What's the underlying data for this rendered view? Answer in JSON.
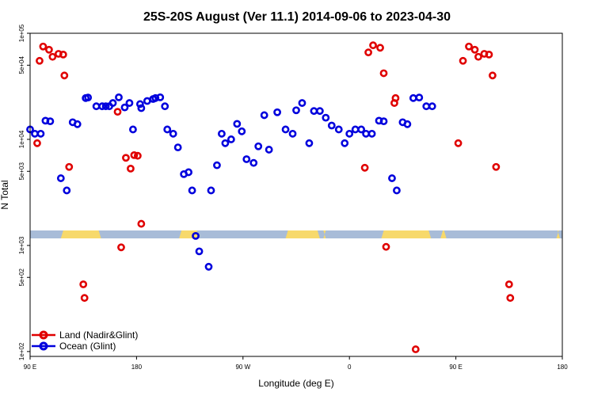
{
  "chart_data": {
    "type": "scatter",
    "title": "25S-20S August (Ver 11.1)   2014-09-06 to 2023-04-30",
    "xlabel": "Longitude (deg E)",
    "ylabel": "N Total",
    "x_ticks": [
      {
        "value": 90,
        "label": "90 E"
      },
      {
        "value": 180,
        "label": "180"
      },
      {
        "value": 270,
        "label": "90 W"
      },
      {
        "value": 360,
        "label": "0"
      },
      {
        "value": 450,
        "label": "90 E"
      },
      {
        "value": 540,
        "label": "180"
      }
    ],
    "y_scale": "log",
    "y_ticks": [
      {
        "value": 100,
        "label": "1e+02"
      },
      {
        "value": 500,
        "label": "5e+02"
      },
      {
        "value": 1000,
        "label": "1e+03"
      },
      {
        "value": 5000,
        "label": "5e+03"
      },
      {
        "value": 10000,
        "label": "1e+04"
      },
      {
        "value": 50000,
        "label": "5e+04"
      },
      {
        "value": 100000,
        "label": "1e+05"
      }
    ],
    "xlim": [
      90,
      540
    ],
    "ylim": [
      90,
      100000
    ],
    "legend_position": "bottom-left",
    "land_strip_spans": [
      [
        116,
        150
      ],
      [
        216,
        233
      ],
      [
        306,
        316
      ],
      [
        307,
        335
      ],
      [
        338,
        340
      ],
      [
        387,
        429
      ],
      [
        437,
        442
      ],
      [
        535,
        538
      ]
    ],
    "series": [
      {
        "name": "Land (Nadir&Glint)",
        "color": "#e00000",
        "points": [
          [
            96,
            9200
          ],
          [
            98,
            55000
          ],
          [
            101,
            75000
          ],
          [
            106,
            70000
          ],
          [
            109,
            60000
          ],
          [
            114,
            64000
          ],
          [
            118,
            63000
          ],
          [
            119,
            40000
          ],
          [
            123,
            5500
          ],
          [
            135,
            430
          ],
          [
            136,
            320
          ],
          [
            164,
            18200
          ],
          [
            167,
            960
          ],
          [
            171,
            6700
          ],
          [
            175,
            5300
          ],
          [
            178,
            7100
          ],
          [
            181,
            7000
          ],
          [
            184,
            1600
          ],
          [
            373,
            5400
          ],
          [
            376,
            66000
          ],
          [
            380,
            77000
          ],
          [
            386,
            73000
          ],
          [
            389,
            42000
          ],
          [
            391,
            970
          ],
          [
            398,
            22000
          ],
          [
            399,
            24500
          ],
          [
            416,
            105
          ],
          [
            452,
            9200
          ],
          [
            456,
            55000
          ],
          [
            461,
            75000
          ],
          [
            466,
            70000
          ],
          [
            469,
            60000
          ],
          [
            474,
            64000
          ],
          [
            478,
            63000
          ],
          [
            481,
            40000
          ],
          [
            484,
            5500
          ],
          [
            495,
            430
          ],
          [
            496,
            320
          ]
        ]
      },
      {
        "name": "Ocean (Glint)",
        "color": "#0000dd",
        "points": [
          [
            90,
            12400
          ],
          [
            94,
            11300
          ],
          [
            99,
            11300
          ],
          [
            103,
            15000
          ],
          [
            107,
            14800
          ],
          [
            116,
            4300
          ],
          [
            121,
            3300
          ],
          [
            126,
            14500
          ],
          [
            130,
            13900
          ],
          [
            137,
            24500
          ],
          [
            139,
            24800
          ],
          [
            146,
            20500
          ],
          [
            151,
            20500
          ],
          [
            154,
            20500
          ],
          [
            157,
            20500
          ],
          [
            160,
            22000
          ],
          [
            165,
            24900
          ],
          [
            170,
            20000
          ],
          [
            174,
            22000
          ],
          [
            177,
            12400
          ],
          [
            183,
            21500
          ],
          [
            184,
            19700
          ],
          [
            189,
            23000
          ],
          [
            194,
            24000
          ],
          [
            196,
            24500
          ],
          [
            200,
            24900
          ],
          [
            204,
            20500
          ],
          [
            206,
            12400
          ],
          [
            211,
            11300
          ],
          [
            215,
            8400
          ],
          [
            220,
            4700
          ],
          [
            224,
            4900
          ],
          [
            227,
            3300
          ],
          [
            230,
            1230
          ],
          [
            233,
            880
          ],
          [
            241,
            630
          ],
          [
            243,
            3300
          ],
          [
            248,
            5700
          ],
          [
            252,
            11300
          ],
          [
            255,
            9200
          ],
          [
            260,
            10000
          ],
          [
            265,
            14000
          ],
          [
            269,
            11900
          ],
          [
            273,
            6500
          ],
          [
            279,
            6000
          ],
          [
            283,
            8600
          ],
          [
            288,
            16900
          ],
          [
            292,
            8000
          ],
          [
            299,
            18000
          ],
          [
            306,
            12400
          ],
          [
            312,
            11300
          ],
          [
            315,
            18800
          ],
          [
            320,
            22000
          ],
          [
            326,
            9200
          ],
          [
            330,
            18500
          ],
          [
            335,
            18500
          ],
          [
            340,
            16000
          ],
          [
            345,
            13500
          ],
          [
            351,
            12400
          ],
          [
            356,
            9200
          ],
          [
            360,
            11300
          ],
          [
            365,
            12400
          ],
          [
            370,
            12400
          ],
          [
            374,
            11300
          ],
          [
            379,
            11300
          ],
          [
            385,
            15000
          ],
          [
            389,
            14800
          ],
          [
            396,
            4300
          ],
          [
            400,
            3300
          ],
          [
            405,
            14500
          ],
          [
            409,
            13900
          ],
          [
            414,
            24500
          ],
          [
            419,
            24800
          ],
          [
            425,
            20500
          ],
          [
            430,
            20500
          ]
        ]
      }
    ]
  }
}
